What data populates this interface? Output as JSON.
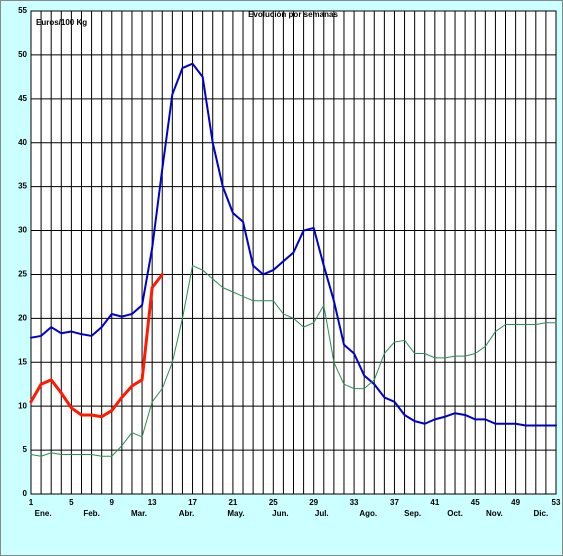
{
  "chart_data": {
    "type": "line",
    "title": "Evolución por semanas",
    "y_label": "Euros/100 Kg",
    "x": [
      1,
      2,
      3,
      4,
      5,
      6,
      7,
      8,
      9,
      10,
      11,
      12,
      13,
      14,
      15,
      16,
      17,
      18,
      19,
      20,
      21,
      22,
      23,
      24,
      25,
      26,
      27,
      28,
      29,
      30,
      31,
      32,
      33,
      34,
      35,
      36,
      37,
      38,
      39,
      40,
      41,
      42,
      43,
      44,
      45,
      46,
      47,
      48,
      49,
      50,
      51,
      52,
      53
    ],
    "xlim": [
      1,
      53
    ],
    "xticks": [
      1,
      5,
      9,
      13,
      17,
      21,
      25,
      29,
      33,
      37,
      41,
      45,
      49,
      53
    ],
    "month_ticks": [
      {
        "value": 2.2,
        "label": "Ene."
      },
      {
        "value": 7,
        "label": "Feb."
      },
      {
        "value": 11.7,
        "label": "Mar."
      },
      {
        "value": 16.4,
        "label": "Abr."
      },
      {
        "value": 21.3,
        "label": "May."
      },
      {
        "value": 25.7,
        "label": "Jun."
      },
      {
        "value": 29.8,
        "label": "Jul."
      },
      {
        "value": 34.4,
        "label": "Ago."
      },
      {
        "value": 38.8,
        "label": "Sep."
      },
      {
        "value": 43,
        "label": "Oct."
      },
      {
        "value": 46.9,
        "label": "Nov."
      },
      {
        "value": 51.5,
        "label": "Dic."
      }
    ],
    "ylim": [
      0,
      55
    ],
    "yticks": [
      0,
      5,
      10,
      15,
      20,
      25,
      30,
      35,
      40,
      45,
      50,
      55
    ],
    "grid": true,
    "series": [
      {
        "color": "#0000cc",
        "width": 2,
        "values": [
          17.8,
          18,
          19,
          18.3,
          18.5,
          18.2,
          18,
          19,
          20.5,
          20.2,
          20.5,
          21.5,
          28,
          37,
          45.5,
          48.5,
          49,
          47.5,
          40,
          35,
          32,
          31,
          26,
          25,
          25.5,
          26.5,
          27.5,
          30,
          30.3,
          26,
          22,
          17,
          16,
          13.5,
          12.5,
          11,
          10.5,
          9,
          8.3,
          8,
          8.5,
          8.8,
          9.2,
          9,
          8.5,
          8.5,
          8,
          8,
          8,
          7.8,
          7.8,
          7.8,
          7.8
        ]
      },
      {
        "color": "#2e8b57",
        "width": 1,
        "values": [
          4.5,
          4.3,
          4.7,
          4.5,
          4.5,
          4.5,
          4.5,
          4.3,
          4.3,
          5.5,
          7,
          6.5,
          10.5,
          12,
          15,
          20,
          26,
          25.5,
          24.5,
          23.5,
          23,
          22.5,
          22,
          22,
          22,
          20.5,
          20,
          19,
          19.5,
          21.5,
          15,
          12.5,
          12,
          12,
          13,
          16,
          17.3,
          17.5,
          16,
          16,
          15.5,
          15.5,
          15.7,
          15.7,
          16,
          16.8,
          18.5,
          19.3,
          19.3,
          19.3,
          19.3,
          19.5,
          19.5
        ]
      },
      {
        "color": "#ff1a00",
        "width": 3,
        "values": [
          10.5,
          12.5,
          13,
          11.5,
          9.8,
          9,
          9,
          8.8,
          9.5,
          11,
          12.3,
          13,
          23.5,
          25,
          null,
          null,
          null,
          null,
          null,
          null,
          null,
          null,
          null,
          null,
          null,
          null,
          null,
          null,
          null,
          null,
          null,
          null,
          null,
          null,
          null,
          null,
          null,
          null,
          null,
          null,
          null,
          null,
          null,
          null,
          null,
          null,
          null,
          null,
          null,
          null,
          null,
          null,
          null
        ]
      }
    ]
  }
}
